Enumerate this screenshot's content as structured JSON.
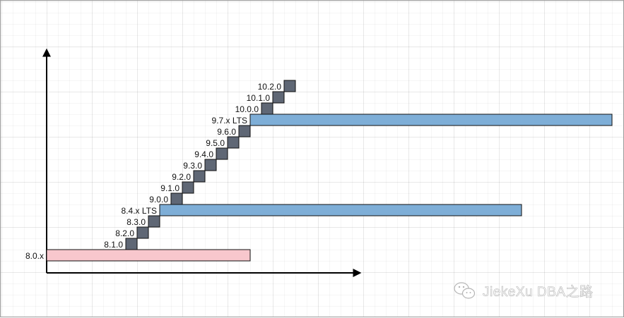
{
  "diagram": {
    "baseline": {
      "label": "8.0.x",
      "color": "#f8c7cd"
    },
    "versions": [
      {
        "label": "8.1.0",
        "kind": "release"
      },
      {
        "label": "8.2.0",
        "kind": "release"
      },
      {
        "label": "8.3.0",
        "kind": "release"
      },
      {
        "label": "8.4.x LTS",
        "kind": "lts"
      },
      {
        "label": "9.0.0",
        "kind": "release"
      },
      {
        "label": "9.1.0",
        "kind": "release"
      },
      {
        "label": "9.2.0",
        "kind": "release"
      },
      {
        "label": "9.3.0",
        "kind": "release"
      },
      {
        "label": "9.4.0",
        "kind": "release"
      },
      {
        "label": "9.5.0",
        "kind": "release"
      },
      {
        "label": "9.6.0",
        "kind": "release"
      },
      {
        "label": "9.7.x LTS",
        "kind": "lts"
      },
      {
        "label": "10.0.0",
        "kind": "release"
      },
      {
        "label": "10.1.0",
        "kind": "release"
      },
      {
        "label": "10.2.0",
        "kind": "release"
      }
    ],
    "colors": {
      "release": "#5f6775",
      "lts": "#7eaed7",
      "baseline": "#f8c7cd"
    }
  },
  "watermark": {
    "text": "JiekeXu DBA之路",
    "icon": "wechat-icon"
  }
}
